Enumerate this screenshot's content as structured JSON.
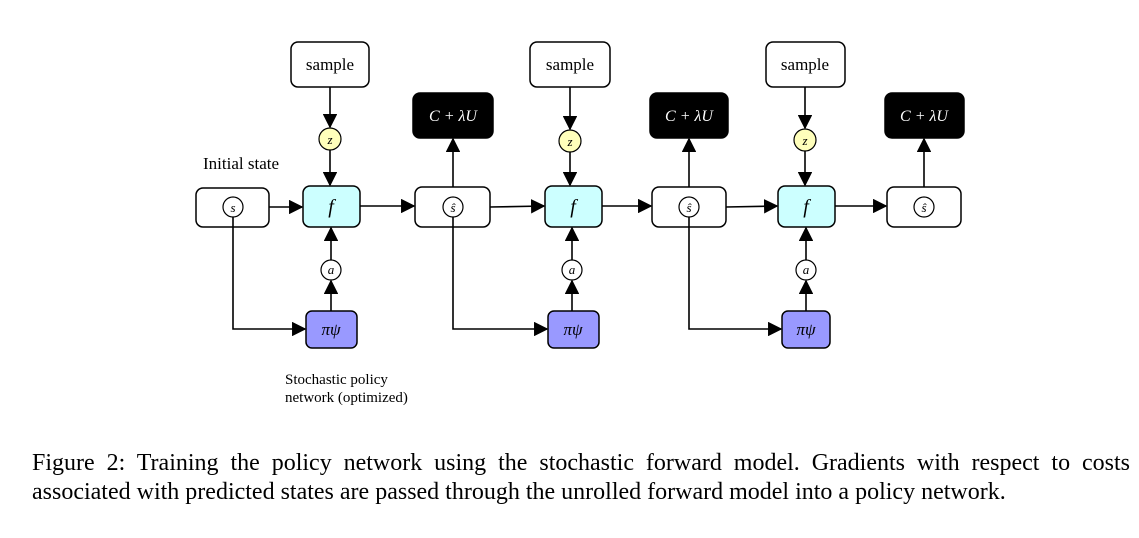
{
  "diagram": {
    "sample_label": "sample",
    "cost_label": "C + λU",
    "noise_label": "z",
    "model_label": "f",
    "action_label": "a",
    "state_label": "s",
    "pred_state_label": "ŝ",
    "policy_label": "πψ",
    "initial_state_label": "Initial state",
    "policy_note_line1": "Stochastic policy",
    "policy_note_line2": "network (optimized)",
    "colors": {
      "model_fill": "#ccffff",
      "policy_fill": "#9999ff",
      "noise_fill": "#ffffbb",
      "cost_fill": "#000000"
    }
  },
  "caption": "Figure 2: Training the policy network using the stochastic forward model. Gradients with respect to costs associated with predicted states are passed through the unrolled forward model into a policy network."
}
